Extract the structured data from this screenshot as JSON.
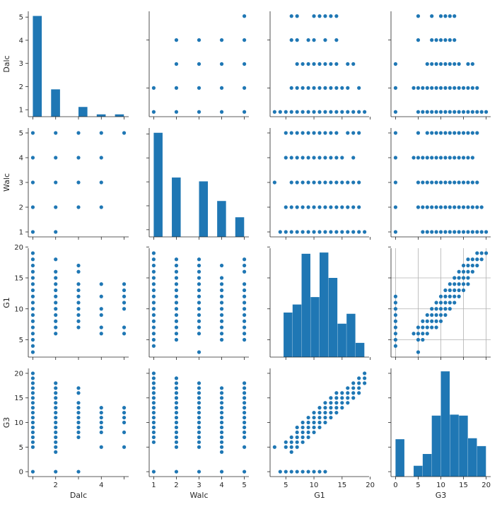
{
  "chart_data": {
    "type": "scatter",
    "variables": [
      "Dalc",
      "Walc",
      "G1",
      "G3"
    ],
    "axes": {
      "Dalc": {
        "lim": [
          0.8,
          5.2
        ],
        "ticks": [
          2,
          4
        ],
        "hist_ticks": [
          1,
          2,
          3,
          4,
          5
        ]
      },
      "Walc": {
        "lim": [
          0.8,
          5.2
        ],
        "ticks": [
          1,
          2,
          3,
          4,
          5
        ]
      },
      "G1": {
        "lim": [
          2.2,
          19.8
        ],
        "ticks": [
          5,
          10,
          15,
          20
        ]
      },
      "G3": {
        "lim": [
          -1,
          21
        ],
        "ticks": [
          0,
          5,
          10,
          15,
          20
        ]
      }
    },
    "color": "#1f77b4",
    "histograms": {
      "Dalc": {
        "edges": [
          1,
          1.4,
          1.8,
          2.2,
          2.6,
          3,
          3.4,
          3.8,
          4.2,
          4.6,
          5
        ],
        "counts": [
          5.05,
          0,
          1.88,
          0,
          0,
          1.12,
          0,
          0.8,
          0,
          0.8
        ],
        "ylim": [
          0.7,
          5.25
        ]
      },
      "Walc": {
        "edges": [
          1,
          1.4,
          1.8,
          2.2,
          2.6,
          3,
          3.4,
          3.8,
          4.2,
          4.6,
          5
        ],
        "counts": [
          5.05,
          0,
          3.18,
          0,
          0,
          3.02,
          0,
          2.2,
          0,
          1.52
        ],
        "ylim": [
          0.7,
          5.25
        ]
      },
      "G1": {
        "edges": [
          3,
          4.6,
          6.2,
          7.8,
          9.4,
          11,
          12.6,
          14.2,
          15.8,
          17.4,
          19
        ],
        "counts": [
          0.7,
          9.4,
          10.7,
          18.9,
          11.9,
          19.1,
          15.0,
          7.6,
          9.2,
          4.5
        ],
        "ylim": [
          2.2,
          19.8
        ]
      },
      "G3": {
        "edges": [
          0,
          2,
          4,
          6,
          8,
          10,
          12,
          14,
          16,
          18,
          20
        ],
        "counts": [
          6.6,
          0,
          1.2,
          3.6,
          11.4,
          20.4,
          11.6,
          11.4,
          6.8,
          5.2
        ],
        "ylim": [
          -1,
          21
        ]
      }
    },
    "pairs": {
      "Dalc_Walc": [
        [
          1,
          1
        ],
        [
          1,
          2
        ],
        [
          1,
          3
        ],
        [
          1,
          4
        ],
        [
          1,
          5
        ],
        [
          2,
          1
        ],
        [
          2,
          2
        ],
        [
          2,
          3
        ],
        [
          2,
          4
        ],
        [
          2,
          5
        ],
        [
          3,
          2
        ],
        [
          3,
          3
        ],
        [
          3,
          4
        ],
        [
          3,
          5
        ],
        [
          4,
          2
        ],
        [
          4,
          3
        ],
        [
          4,
          4
        ],
        [
          4,
          5
        ],
        [
          5,
          5
        ]
      ],
      "Dalc_G1": [
        [
          1,
          3
        ],
        [
          1,
          4
        ],
        [
          1,
          5
        ],
        [
          1,
          6
        ],
        [
          1,
          7
        ],
        [
          1,
          8
        ],
        [
          1,
          9
        ],
        [
          1,
          10
        ],
        [
          1,
          11
        ],
        [
          1,
          12
        ],
        [
          1,
          13
        ],
        [
          1,
          14
        ],
        [
          1,
          15
        ],
        [
          1,
          16
        ],
        [
          1,
          17
        ],
        [
          1,
          18
        ],
        [
          1,
          19
        ],
        [
          2,
          6
        ],
        [
          2,
          7
        ],
        [
          2,
          8
        ],
        [
          2,
          9
        ],
        [
          2,
          10
        ],
        [
          2,
          11
        ],
        [
          2,
          12
        ],
        [
          2,
          13
        ],
        [
          2,
          14
        ],
        [
          2,
          15
        ],
        [
          2,
          16
        ],
        [
          2,
          18
        ],
        [
          3,
          7
        ],
        [
          3,
          8
        ],
        [
          3,
          9
        ],
        [
          3,
          10
        ],
        [
          3,
          11
        ],
        [
          3,
          12
        ],
        [
          3,
          13
        ],
        [
          3,
          14
        ],
        [
          3,
          16
        ],
        [
          3,
          17
        ],
        [
          4,
          6
        ],
        [
          4,
          7
        ],
        [
          4,
          9
        ],
        [
          4,
          10
        ],
        [
          4,
          12
        ],
        [
          4,
          14
        ],
        [
          5,
          6
        ],
        [
          5,
          7
        ],
        [
          5,
          10
        ],
        [
          5,
          11
        ],
        [
          5,
          12
        ],
        [
          5,
          13
        ],
        [
          5,
          14
        ]
      ],
      "Dalc_G3": [
        [
          1,
          0
        ],
        [
          1,
          5
        ],
        [
          1,
          6
        ],
        [
          1,
          7
        ],
        [
          1,
          8
        ],
        [
          1,
          9
        ],
        [
          1,
          10
        ],
        [
          1,
          11
        ],
        [
          1,
          12
        ],
        [
          1,
          13
        ],
        [
          1,
          14
        ],
        [
          1,
          15
        ],
        [
          1,
          16
        ],
        [
          1,
          17
        ],
        [
          1,
          18
        ],
        [
          1,
          19
        ],
        [
          1,
          20
        ],
        [
          2,
          0
        ],
        [
          2,
          4
        ],
        [
          2,
          5
        ],
        [
          2,
          6
        ],
        [
          2,
          7
        ],
        [
          2,
          8
        ],
        [
          2,
          9
        ],
        [
          2,
          10
        ],
        [
          2,
          11
        ],
        [
          2,
          12
        ],
        [
          2,
          13
        ],
        [
          2,
          14
        ],
        [
          2,
          15
        ],
        [
          2,
          16
        ],
        [
          2,
          17
        ],
        [
          2,
          18
        ],
        [
          3,
          0
        ],
        [
          3,
          7
        ],
        [
          3,
          8
        ],
        [
          3,
          9
        ],
        [
          3,
          10
        ],
        [
          3,
          11
        ],
        [
          3,
          12
        ],
        [
          3,
          13
        ],
        [
          3,
          14
        ],
        [
          3,
          16
        ],
        [
          3,
          17
        ],
        [
          4,
          5
        ],
        [
          4,
          8
        ],
        [
          4,
          9
        ],
        [
          4,
          10
        ],
        [
          4,
          11
        ],
        [
          4,
          12
        ],
        [
          4,
          13
        ],
        [
          5,
          5
        ],
        [
          5,
          8
        ],
        [
          5,
          10
        ],
        [
          5,
          11
        ],
        [
          5,
          12
        ],
        [
          5,
          13
        ]
      ],
      "Walc_G1": [
        [
          1,
          4
        ],
        [
          1,
          5
        ],
        [
          1,
          6
        ],
        [
          1,
          7
        ],
        [
          1,
          8
        ],
        [
          1,
          9
        ],
        [
          1,
          10
        ],
        [
          1,
          11
        ],
        [
          1,
          12
        ],
        [
          1,
          13
        ],
        [
          1,
          14
        ],
        [
          1,
          15
        ],
        [
          1,
          16
        ],
        [
          1,
          17
        ],
        [
          1,
          18
        ],
        [
          1,
          19
        ],
        [
          2,
          5
        ],
        [
          2,
          6
        ],
        [
          2,
          7
        ],
        [
          2,
          8
        ],
        [
          2,
          9
        ],
        [
          2,
          10
        ],
        [
          2,
          11
        ],
        [
          2,
          12
        ],
        [
          2,
          13
        ],
        [
          2,
          14
        ],
        [
          2,
          15
        ],
        [
          2,
          16
        ],
        [
          2,
          17
        ],
        [
          2,
          18
        ],
        [
          3,
          3
        ],
        [
          3,
          6
        ],
        [
          3,
          7
        ],
        [
          3,
          8
        ],
        [
          3,
          9
        ],
        [
          3,
          10
        ],
        [
          3,
          11
        ],
        [
          3,
          12
        ],
        [
          3,
          13
        ],
        [
          3,
          14
        ],
        [
          3,
          15
        ],
        [
          3,
          16
        ],
        [
          3,
          17
        ],
        [
          3,
          18
        ],
        [
          4,
          5
        ],
        [
          4,
          6
        ],
        [
          4,
          7
        ],
        [
          4,
          8
        ],
        [
          4,
          9
        ],
        [
          4,
          10
        ],
        [
          4,
          11
        ],
        [
          4,
          12
        ],
        [
          4,
          13
        ],
        [
          4,
          14
        ],
        [
          4,
          15
        ],
        [
          4,
          17
        ],
        [
          5,
          5
        ],
        [
          5,
          6
        ],
        [
          5,
          7
        ],
        [
          5,
          8
        ],
        [
          5,
          9
        ],
        [
          5,
          10
        ],
        [
          5,
          11
        ],
        [
          5,
          12
        ],
        [
          5,
          13
        ],
        [
          5,
          14
        ],
        [
          5,
          16
        ],
        [
          5,
          17
        ],
        [
          5,
          18
        ]
      ],
      "Walc_G3": [
        [
          1,
          0
        ],
        [
          1,
          6
        ],
        [
          1,
          7
        ],
        [
          1,
          8
        ],
        [
          1,
          9
        ],
        [
          1,
          10
        ],
        [
          1,
          11
        ],
        [
          1,
          12
        ],
        [
          1,
          13
        ],
        [
          1,
          14
        ],
        [
          1,
          15
        ],
        [
          1,
          16
        ],
        [
          1,
          17
        ],
        [
          1,
          18
        ],
        [
          1,
          19
        ],
        [
          1,
          20
        ],
        [
          2,
          0
        ],
        [
          2,
          5
        ],
        [
          2,
          6
        ],
        [
          2,
          7
        ],
        [
          2,
          8
        ],
        [
          2,
          9
        ],
        [
          2,
          10
        ],
        [
          2,
          11
        ],
        [
          2,
          12
        ],
        [
          2,
          13
        ],
        [
          2,
          14
        ],
        [
          2,
          15
        ],
        [
          2,
          16
        ],
        [
          2,
          17
        ],
        [
          2,
          18
        ],
        [
          2,
          19
        ],
        [
          3,
          0
        ],
        [
          3,
          5
        ],
        [
          3,
          6
        ],
        [
          3,
          7
        ],
        [
          3,
          8
        ],
        [
          3,
          9
        ],
        [
          3,
          10
        ],
        [
          3,
          11
        ],
        [
          3,
          12
        ],
        [
          3,
          13
        ],
        [
          3,
          14
        ],
        [
          3,
          15
        ],
        [
          3,
          16
        ],
        [
          3,
          17
        ],
        [
          3,
          18
        ],
        [
          4,
          0
        ],
        [
          4,
          4
        ],
        [
          4,
          5
        ],
        [
          4,
          6
        ],
        [
          4,
          7
        ],
        [
          4,
          8
        ],
        [
          4,
          9
        ],
        [
          4,
          10
        ],
        [
          4,
          11
        ],
        [
          4,
          12
        ],
        [
          4,
          13
        ],
        [
          4,
          14
        ],
        [
          4,
          15
        ],
        [
          4,
          16
        ],
        [
          4,
          17
        ],
        [
          5,
          0
        ],
        [
          5,
          5
        ],
        [
          5,
          7
        ],
        [
          5,
          8
        ],
        [
          5,
          9
        ],
        [
          5,
          10
        ],
        [
          5,
          11
        ],
        [
          5,
          12
        ],
        [
          5,
          13
        ],
        [
          5,
          14
        ],
        [
          5,
          15
        ],
        [
          5,
          16
        ],
        [
          5,
          17
        ],
        [
          5,
          18
        ]
      ],
      "G1_G3": [
        [
          3,
          5
        ],
        [
          4,
          0
        ],
        [
          5,
          0
        ],
        [
          5,
          5
        ],
        [
          5,
          6
        ],
        [
          6,
          0
        ],
        [
          6,
          4
        ],
        [
          6,
          5
        ],
        [
          6,
          6
        ],
        [
          6,
          7
        ],
        [
          7,
          0
        ],
        [
          7,
          5
        ],
        [
          7,
          6
        ],
        [
          7,
          7
        ],
        [
          7,
          8
        ],
        [
          7,
          9
        ],
        [
          8,
          0
        ],
        [
          8,
          6
        ],
        [
          8,
          7
        ],
        [
          8,
          8
        ],
        [
          8,
          9
        ],
        [
          8,
          10
        ],
        [
          9,
          0
        ],
        [
          9,
          7
        ],
        [
          9,
          8
        ],
        [
          9,
          9
        ],
        [
          9,
          10
        ],
        [
          9,
          11
        ],
        [
          10,
          0
        ],
        [
          10,
          8
        ],
        [
          10,
          9
        ],
        [
          10,
          10
        ],
        [
          10,
          11
        ],
        [
          10,
          12
        ],
        [
          11,
          0
        ],
        [
          11,
          9
        ],
        [
          11,
          10
        ],
        [
          11,
          11
        ],
        [
          11,
          12
        ],
        [
          11,
          13
        ],
        [
          12,
          0
        ],
        [
          12,
          10
        ],
        [
          12,
          11
        ],
        [
          12,
          12
        ],
        [
          12,
          13
        ],
        [
          12,
          14
        ],
        [
          13,
          11
        ],
        [
          13,
          12
        ],
        [
          13,
          13
        ],
        [
          13,
          14
        ],
        [
          13,
          15
        ],
        [
          14,
          12
        ],
        [
          14,
          13
        ],
        [
          14,
          14
        ],
        [
          14,
          15
        ],
        [
          14,
          16
        ],
        [
          15,
          13
        ],
        [
          15,
          14
        ],
        [
          15,
          15
        ],
        [
          15,
          16
        ],
        [
          16,
          14
        ],
        [
          16,
          15
        ],
        [
          16,
          16
        ],
        [
          16,
          17
        ],
        [
          17,
          15
        ],
        [
          17,
          16
        ],
        [
          17,
          17
        ],
        [
          17,
          18
        ],
        [
          18,
          16
        ],
        [
          18,
          17
        ],
        [
          18,
          18
        ],
        [
          18,
          19
        ],
        [
          19,
          18
        ],
        [
          19,
          19
        ],
        [
          19,
          20
        ]
      ]
    }
  }
}
